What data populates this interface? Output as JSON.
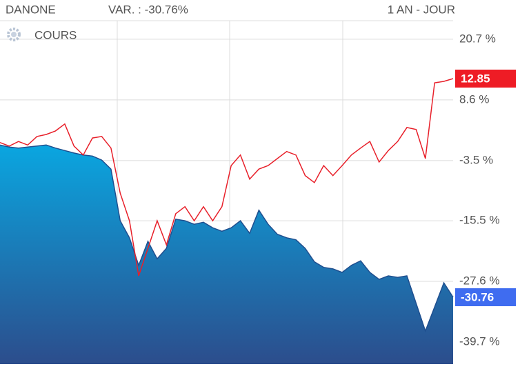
{
  "header": {
    "name": "DANONE",
    "variation": "VAR. : -30.76%",
    "period": "1 AN - JOUR"
  },
  "chart_data": {
    "type": "area-line",
    "title": "COURS",
    "ylim": [
      -44.1,
      24.4
    ],
    "yticks": [
      {
        "value": 20.7,
        "label": "20.7 %"
      },
      {
        "value": 8.6,
        "label": "8.6 %"
      },
      {
        "value": -3.5,
        "label": "-3.5 %"
      },
      {
        "value": -15.5,
        "label": "-15.5 %"
      },
      {
        "value": -27.6,
        "label": "-27.6 %"
      },
      {
        "value": -39.7,
        "label": "-39.7 %"
      }
    ],
    "grid": true,
    "series": [
      {
        "color": "#1f4f8f",
        "fill": "area",
        "values": [
          -0.4,
          -0.8,
          -1.0,
          -0.8,
          -0.6,
          -0.4,
          -1.0,
          -1.5,
          -2.0,
          -2.4,
          -2.6,
          -3.4,
          -5.2,
          -15.5,
          -18.9,
          -24.4,
          -19.6,
          -23.1,
          -21.0,
          -15.2,
          -15.5,
          -16.2,
          -15.8,
          -16.9,
          -17.6,
          -16.9,
          -15.5,
          -18.0,
          -13.4,
          -16.2,
          -18.2,
          -18.9,
          -19.3,
          -21.0,
          -23.7,
          -24.8,
          -25.1,
          -25.8,
          -24.4,
          -23.5,
          -25.8,
          -27.2,
          -26.5,
          -26.8,
          -26.5,
          -32.0,
          -37.5,
          -32.7,
          -27.9,
          -30.76
        ]
      },
      {
        "color": "#e8202a",
        "fill": "line",
        "values": [
          0.1,
          -0.6,
          0.3,
          -0.4,
          1.3,
          1.7,
          2.4,
          3.8,
          -0.6,
          -2.4,
          1.0,
          1.3,
          -1.0,
          -10.0,
          -15.5,
          -26.5,
          -21.0,
          -15.5,
          -20.3,
          -14.1,
          -12.7,
          -15.5,
          -12.7,
          -15.5,
          -12.7,
          -4.5,
          -2.4,
          -7.2,
          -5.2,
          -4.5,
          -3.1,
          -1.7,
          -2.4,
          -6.5,
          -7.9,
          -4.5,
          -6.5,
          -4.5,
          -2.4,
          -1.0,
          0.3,
          -3.8,
          -1.5,
          0.3,
          3.1,
          2.7,
          -3.1,
          12.0,
          12.3,
          12.85
        ]
      }
    ]
  }
}
